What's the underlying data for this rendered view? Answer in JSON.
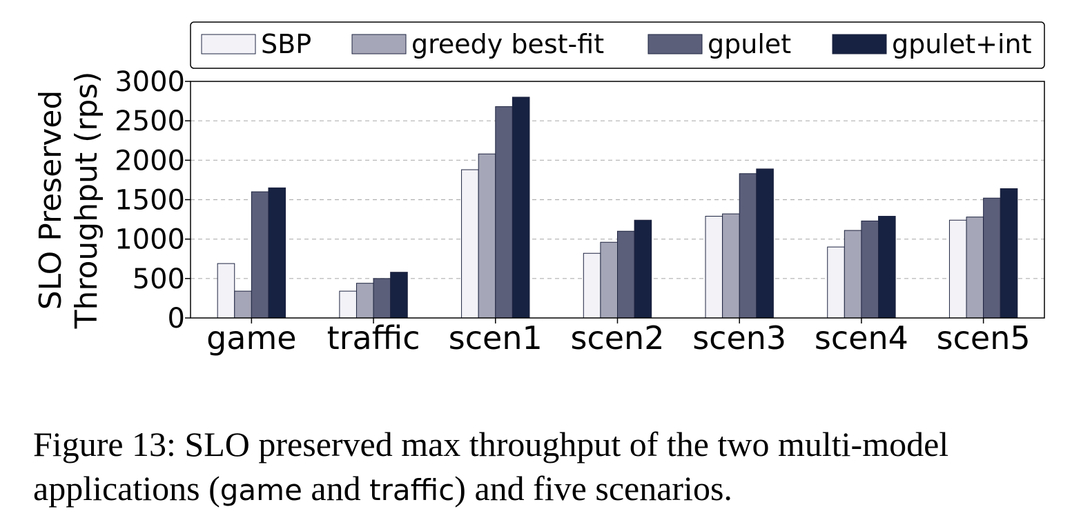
{
  "chart_data": {
    "type": "bar",
    "title": "",
    "xlabel": "",
    "ylabel": "SLO Preserved Throughput (rps)",
    "ylabel_lines": [
      "SLO Preserved",
      "Throughput (rps)"
    ],
    "ylim": [
      0,
      3000
    ],
    "yticks": [
      0,
      500,
      1000,
      1500,
      2000,
      2500,
      3000
    ],
    "grid": "horizontal dashed",
    "legend_position": "top",
    "categories": [
      "game",
      "traffic",
      "scen1",
      "scen2",
      "scen3",
      "scen4",
      "scen5"
    ],
    "series": [
      {
        "name": "SBP",
        "color": "#f2f2f7",
        "values": [
          690,
          340,
          1880,
          820,
          1290,
          900,
          1240
        ]
      },
      {
        "name": "greedy best-fit",
        "color": "#a5a6b7",
        "values": [
          340,
          440,
          2080,
          960,
          1320,
          1110,
          1280
        ]
      },
      {
        "name": "gpulet",
        "color": "#5c5f7a",
        "values": [
          1600,
          500,
          2680,
          1100,
          1830,
          1230,
          1520
        ]
      },
      {
        "name": "gpulet+int",
        "color": "#172242",
        "values": [
          1650,
          580,
          2800,
          1240,
          1890,
          1290,
          1640
        ]
      }
    ]
  },
  "caption": {
    "part1": "Figure 13: SLO preserved max throughput of the two multi-model applications (",
    "app1": "game",
    "and": " and ",
    "app2": "traffic",
    "part2": ") and five scenarios."
  }
}
